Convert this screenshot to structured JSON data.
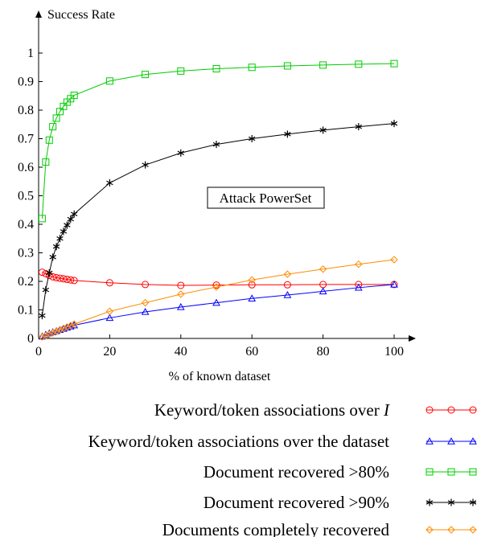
{
  "chart_data": {
    "type": "line",
    "title": "",
    "ylabel": "Success Rate",
    "xlabel": "% of known dataset",
    "xlim": [
      0,
      100
    ],
    "ylim": [
      0,
      1
    ],
    "xticks": [
      0,
      20,
      40,
      60,
      80,
      100
    ],
    "yticks": [
      0,
      0.1,
      0.2,
      0.3,
      0.4,
      0.5,
      0.6,
      0.7,
      0.8,
      0.9,
      1
    ],
    "ytick_labels": [
      "0",
      "0.1",
      "0.2",
      "0.3",
      "0.4",
      "0.5",
      "0.6",
      "0.7",
      "0.8",
      "0.9",
      "1"
    ],
    "annotation": "Attack PowerSet",
    "grid": false,
    "legend_position": "bottom",
    "series": [
      {
        "name_prefix": "Keyword/token associations over ",
        "name_italic": "I",
        "color": "#ff0000",
        "marker": "circle",
        "x": [
          1,
          2,
          3,
          4,
          5,
          6,
          7,
          8,
          9,
          10,
          20,
          30,
          40,
          50,
          60,
          70,
          80,
          90,
          100
        ],
        "y": [
          0.232,
          0.227,
          0.221,
          0.216,
          0.213,
          0.211,
          0.209,
          0.207,
          0.205,
          0.203,
          0.195,
          0.189,
          0.186,
          0.187,
          0.188,
          0.188,
          0.189,
          0.189,
          0.189
        ]
      },
      {
        "name": "Keyword/token associations over the dataset",
        "color": "#0000ff",
        "marker": "triangle",
        "x": [
          1,
          2,
          3,
          4,
          5,
          6,
          7,
          8,
          9,
          10,
          20,
          30,
          40,
          50,
          60,
          70,
          80,
          90,
          100
        ],
        "y": [
          0.007,
          0.013,
          0.018,
          0.022,
          0.026,
          0.03,
          0.034,
          0.038,
          0.042,
          0.046,
          0.072,
          0.093,
          0.11,
          0.125,
          0.14,
          0.152,
          0.165,
          0.178,
          0.189
        ]
      },
      {
        "name": "Document recovered >80%",
        "color": "#00cc00",
        "marker": "square",
        "x": [
          1,
          2,
          3,
          4,
          5,
          6,
          7,
          8,
          9,
          10,
          20,
          30,
          40,
          50,
          60,
          70,
          80,
          90,
          100
        ],
        "y": [
          0.42,
          0.618,
          0.695,
          0.742,
          0.772,
          0.795,
          0.813,
          0.828,
          0.84,
          0.852,
          0.902,
          0.925,
          0.937,
          0.945,
          0.95,
          0.955,
          0.958,
          0.961,
          0.963
        ]
      },
      {
        "name": "Document recovered >90%",
        "color": "#000000",
        "marker": "star",
        "x": [
          1,
          2,
          3,
          4,
          5,
          6,
          7,
          8,
          9,
          10,
          20,
          30,
          40,
          50,
          60,
          70,
          80,
          90,
          100
        ],
        "y": [
          0.08,
          0.17,
          0.23,
          0.285,
          0.322,
          0.35,
          0.375,
          0.397,
          0.418,
          0.436,
          0.545,
          0.608,
          0.65,
          0.68,
          0.7,
          0.716,
          0.73,
          0.742,
          0.753
        ]
      },
      {
        "name": "Documents completely recovered",
        "color": "#ff8c00",
        "marker": "diamond",
        "x": [
          1,
          2,
          3,
          4,
          5,
          6,
          7,
          8,
          9,
          10,
          20,
          30,
          40,
          50,
          60,
          70,
          80,
          90,
          100
        ],
        "y": [
          0.005,
          0.01,
          0.015,
          0.02,
          0.025,
          0.03,
          0.035,
          0.04,
          0.045,
          0.05,
          0.095,
          0.125,
          0.155,
          0.18,
          0.205,
          0.225,
          0.243,
          0.26,
          0.276
        ]
      }
    ]
  }
}
